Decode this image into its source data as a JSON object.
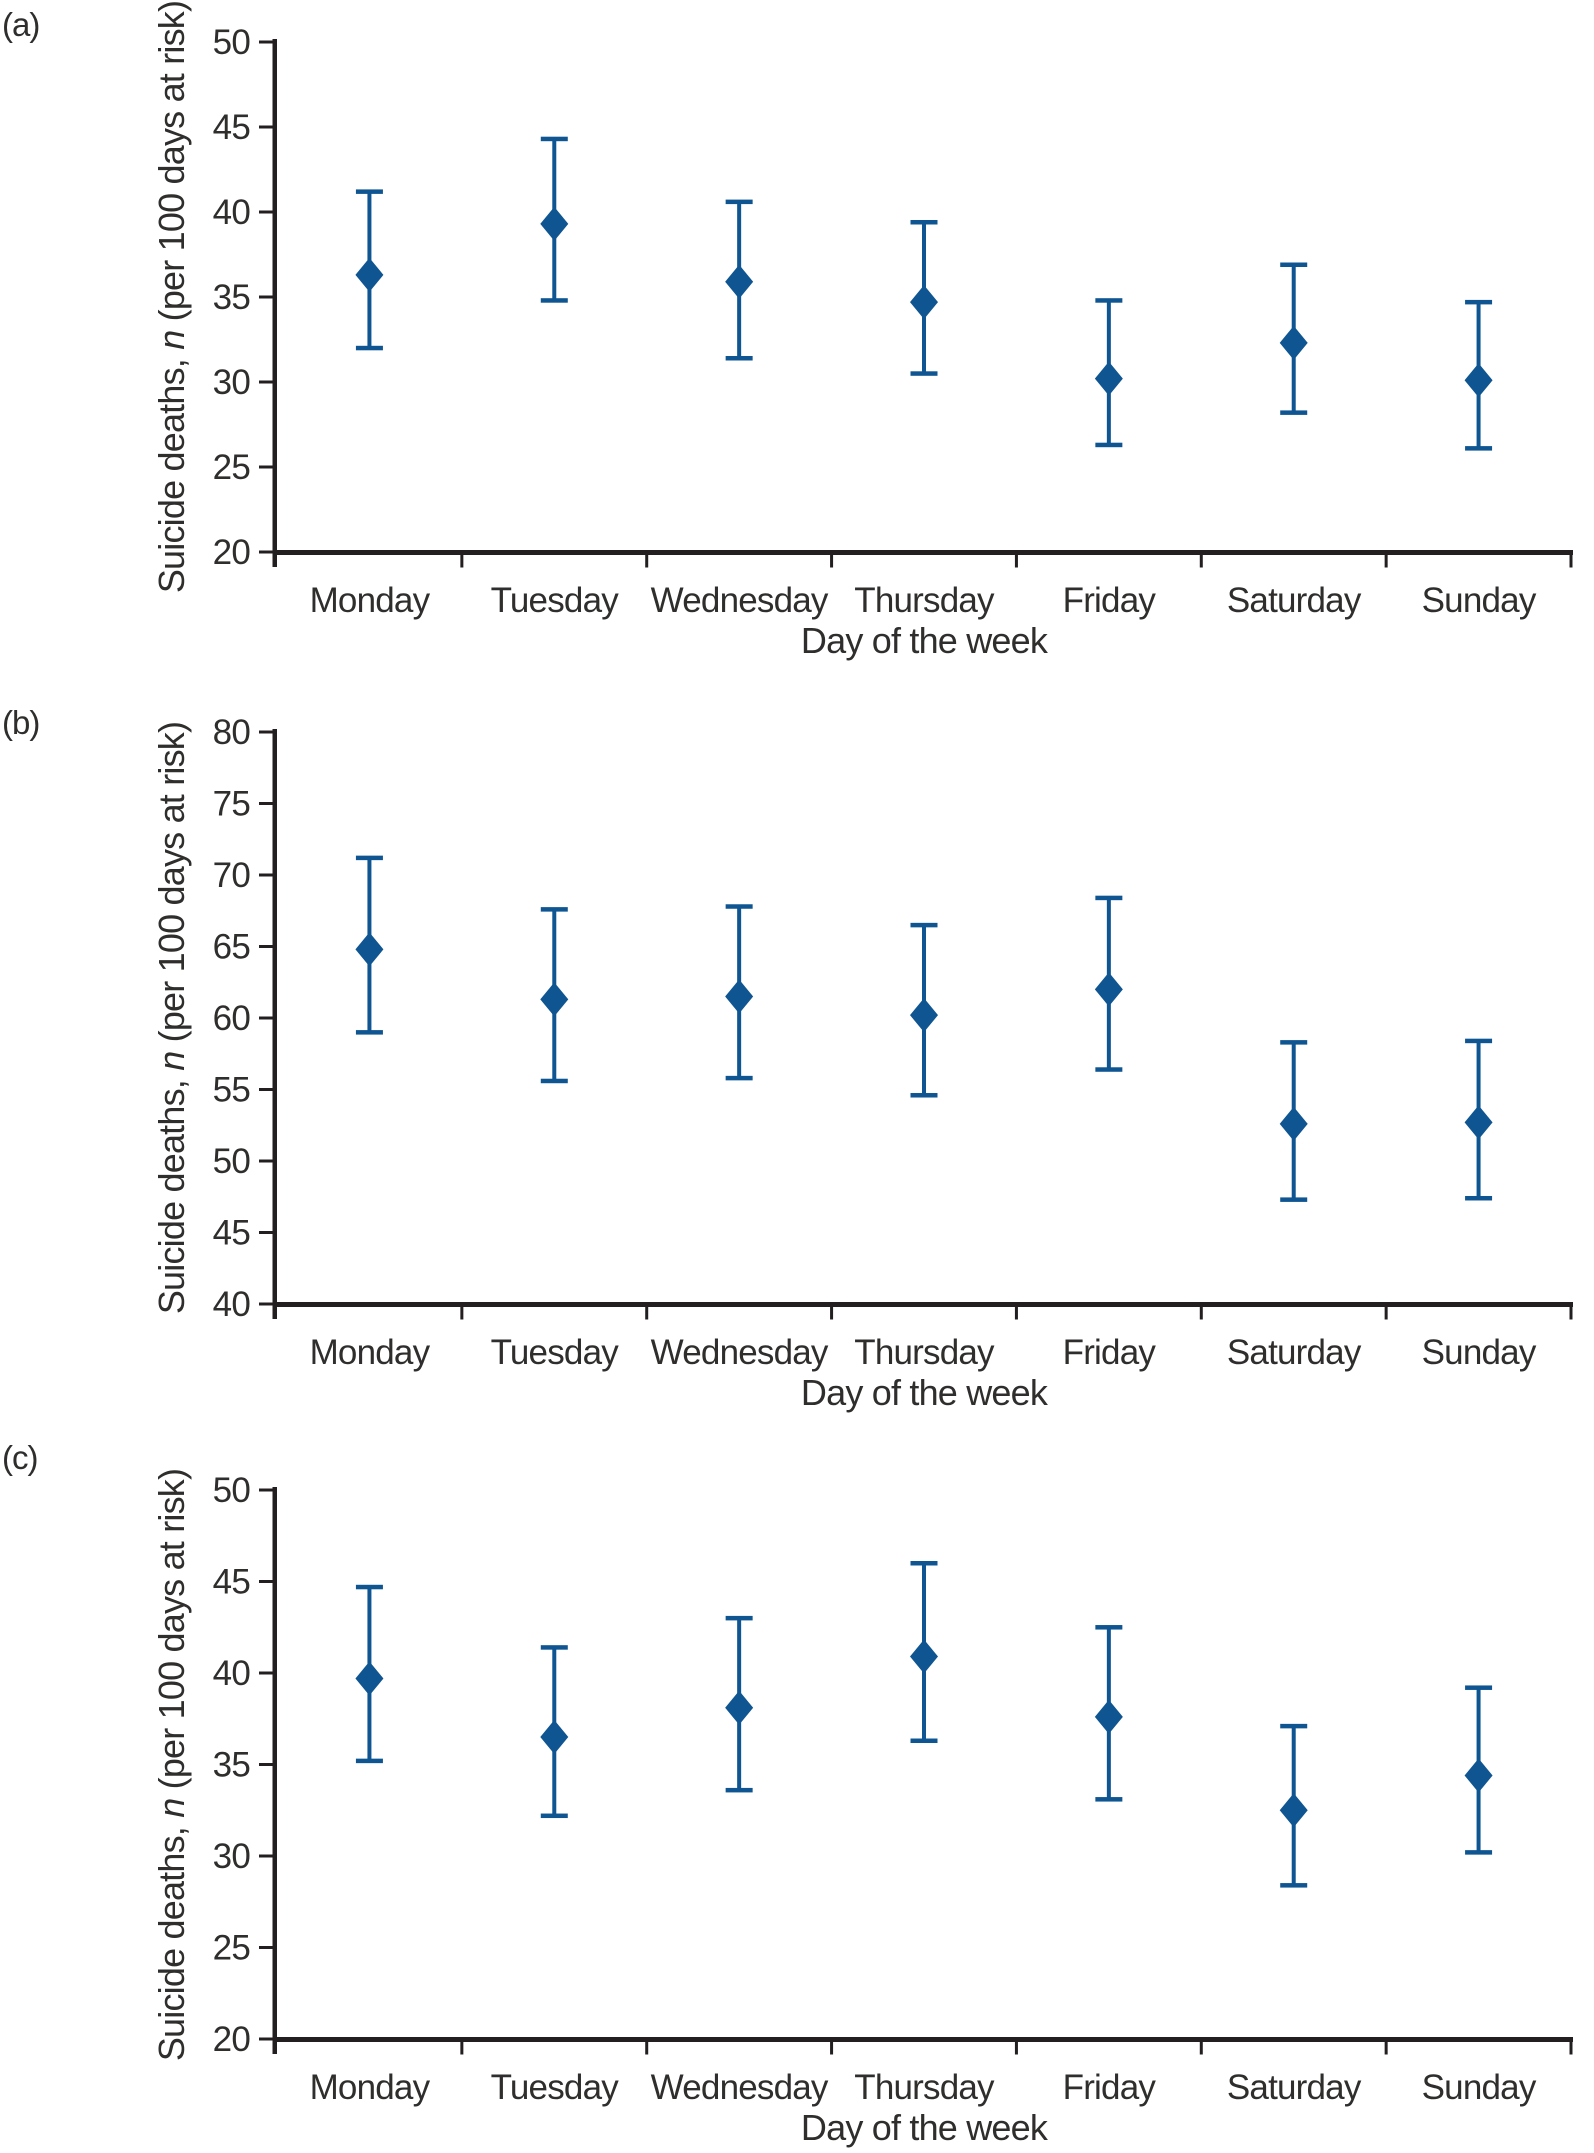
{
  "figure": {
    "background": "#ffffff",
    "description": "Three-panel error-bar figure of suicide deaths by day of the week"
  },
  "style": {
    "marker_color": "#0F5591",
    "axis_color": "#231F20",
    "text_color": "#2F2E2D"
  },
  "ylabel": {
    "prefix": "Suicide deaths, ",
    "n": "n",
    "suffix": " (per 100 days at risk)"
  },
  "xlabel": "Day of the week",
  "chart_data": [
    {
      "panel": "(a)",
      "type": "scatter",
      "marker": "diamond",
      "title": "",
      "xlabel": "Day of the week",
      "ylabel": "Suicide deaths, n (per 100 days at risk)",
      "categories": [
        "Monday",
        "Tuesday",
        "Wednesday",
        "Thursday",
        "Friday",
        "Saturday",
        "Sunday"
      ],
      "series": [
        {
          "name": "Point estimate",
          "values": [
            36.3,
            39.3,
            35.9,
            34.7,
            30.2,
            32.3,
            30.1
          ]
        },
        {
          "name": "95% CI lower",
          "values": [
            32.0,
            34.8,
            31.4,
            30.5,
            26.3,
            28.2,
            26.1
          ]
        },
        {
          "name": "95% CI upper",
          "values": [
            41.2,
            44.3,
            40.6,
            39.4,
            34.8,
            36.9,
            34.7
          ]
        }
      ],
      "ylim": [
        20,
        50
      ],
      "ytick_step": 5,
      "grid": false,
      "legend": false,
      "error_bars": true
    },
    {
      "panel": "(b)",
      "type": "scatter",
      "marker": "diamond",
      "title": "",
      "xlabel": "Day of the week",
      "ylabel": "Suicide deaths, n (per 100 days at risk)",
      "categories": [
        "Monday",
        "Tuesday",
        "Wednesday",
        "Thursday",
        "Friday",
        "Saturday",
        "Sunday"
      ],
      "series": [
        {
          "name": "Point estimate",
          "values": [
            64.8,
            61.3,
            61.5,
            60.2,
            62.0,
            52.6,
            52.7
          ]
        },
        {
          "name": "95% CI lower",
          "values": [
            59.0,
            55.6,
            55.8,
            54.6,
            56.4,
            47.3,
            47.4
          ]
        },
        {
          "name": "95% CI upper",
          "values": [
            71.2,
            67.6,
            67.8,
            66.5,
            68.4,
            58.3,
            58.4
          ]
        }
      ],
      "ylim": [
        40,
        80
      ],
      "ytick_step": 5,
      "grid": false,
      "legend": false,
      "error_bars": true
    },
    {
      "panel": "(c)",
      "type": "scatter",
      "marker": "diamond",
      "title": "",
      "xlabel": "Day of the week",
      "ylabel": "Suicide deaths, n (per 100 days at risk)",
      "categories": [
        "Monday",
        "Tuesday",
        "Wednesday",
        "Thursday",
        "Friday",
        "Saturday",
        "Sunday"
      ],
      "series": [
        {
          "name": "Point estimate",
          "values": [
            39.7,
            36.5,
            38.1,
            40.9,
            37.6,
            32.5,
            34.4
          ]
        },
        {
          "name": "95% CI lower",
          "values": [
            35.2,
            32.2,
            33.6,
            36.3,
            33.1,
            28.4,
            30.2
          ]
        },
        {
          "name": "95% CI upper",
          "values": [
            44.7,
            41.4,
            43.0,
            46.0,
            42.5,
            37.1,
            39.2
          ]
        }
      ],
      "ylim": [
        20,
        50
      ],
      "ytick_step": 5,
      "grid": false,
      "legend": false,
      "error_bars": true
    }
  ]
}
